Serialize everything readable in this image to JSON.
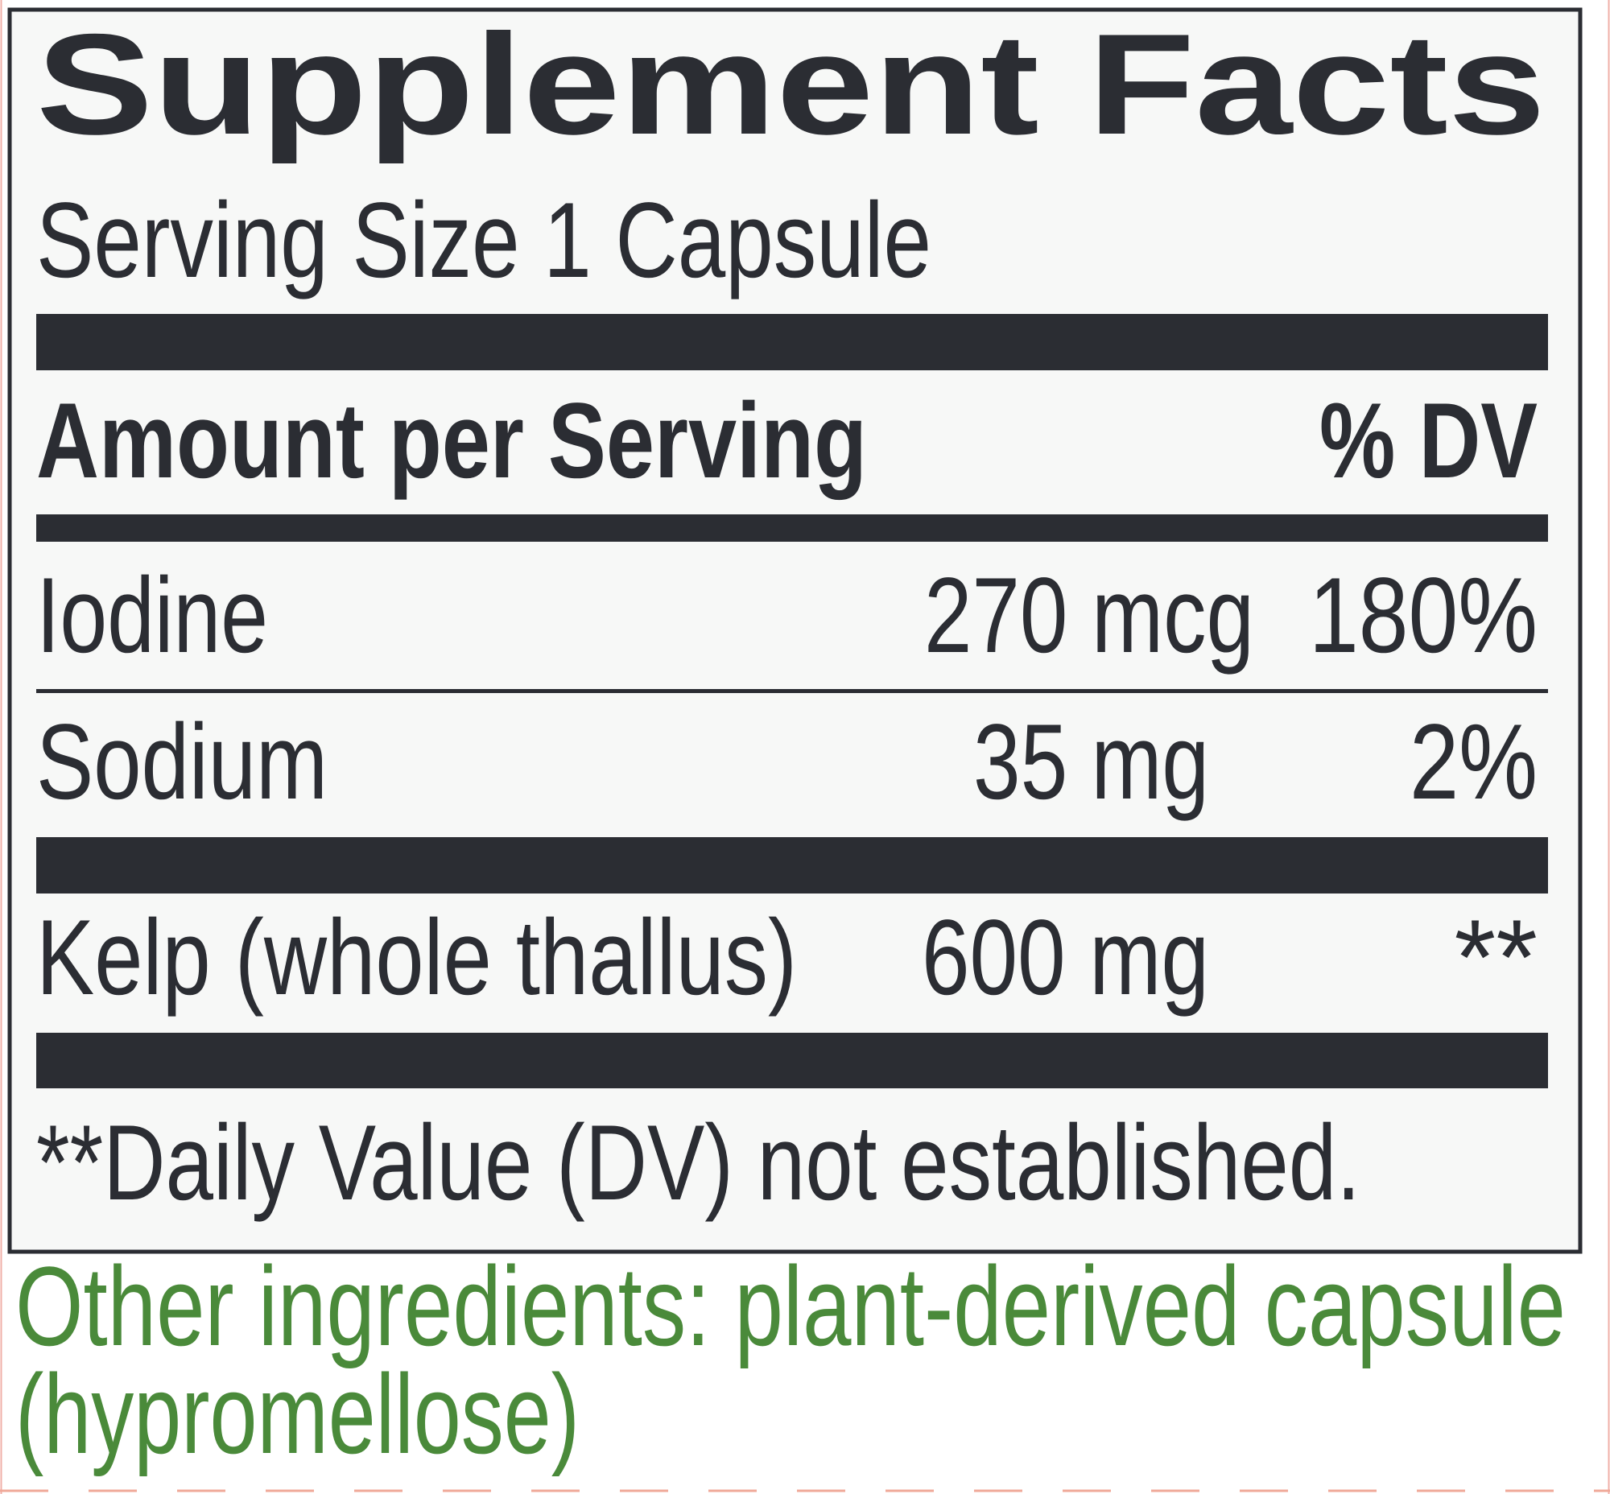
{
  "header": {
    "title": "Supplement Facts",
    "serving_size": "Serving Size 1 Capsule"
  },
  "table": {
    "header": [
      "Amount per Serving",
      "% DV"
    ],
    "rows": [
      [
        "Iodine",
        "270 mcg",
        "180%"
      ],
      [
        "Sodium",
        "35 mg",
        "2%"
      ],
      [
        "Kelp (whole thallus)",
        "600 mg",
        "**"
      ]
    ]
  },
  "footnote": "**Daily Value (DV) not established.",
  "other_ingredients": [
    "Other ingredients: plant-derived capsule",
    "(hypromellose)"
  ]
}
